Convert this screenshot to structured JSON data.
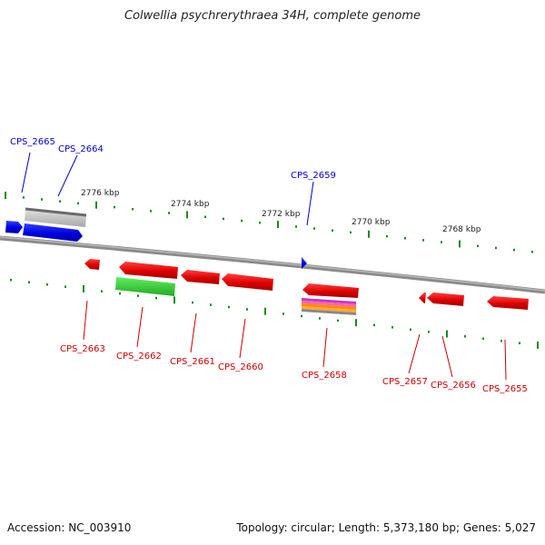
{
  "title": "Colwellia psychrerythraea 34H, complete genome",
  "footer": {
    "accession": "Accession: NC_003910",
    "summary": "Topology: circular; Length: 5,373,180 bp; Genes: 5,027"
  },
  "scale_labels": [
    "2776 kbp",
    "2774 kbp",
    "2772 kbp",
    "2770 kbp",
    "2768 kbp"
  ],
  "colors": {
    "forward_gene": "#0000ee",
    "reverse_gene": "#ee0000",
    "forward_label": "#0000cc",
    "reverse_label": "#cc0000",
    "tick": "#1a8a1a",
    "chromosome": "#7a7a7a",
    "gray_feature": "#bdbdbd",
    "green_feature": "#33cc33"
  },
  "genes": [
    {
      "id": "CPS_2665",
      "strand": "+"
    },
    {
      "id": "CPS_2664",
      "strand": "+"
    },
    {
      "id": "CPS_2659",
      "strand": "+"
    },
    {
      "id": "CPS_2663",
      "strand": "-"
    },
    {
      "id": "CPS_2662",
      "strand": "-"
    },
    {
      "id": "CPS_2661",
      "strand": "-"
    },
    {
      "id": "CPS_2660",
      "strand": "-"
    },
    {
      "id": "CPS_2658",
      "strand": "-"
    },
    {
      "id": "CPS_2657",
      "strand": "-"
    },
    {
      "id": "CPS_2656",
      "strand": "-"
    },
    {
      "id": "CPS_2655",
      "strand": "-"
    }
  ]
}
